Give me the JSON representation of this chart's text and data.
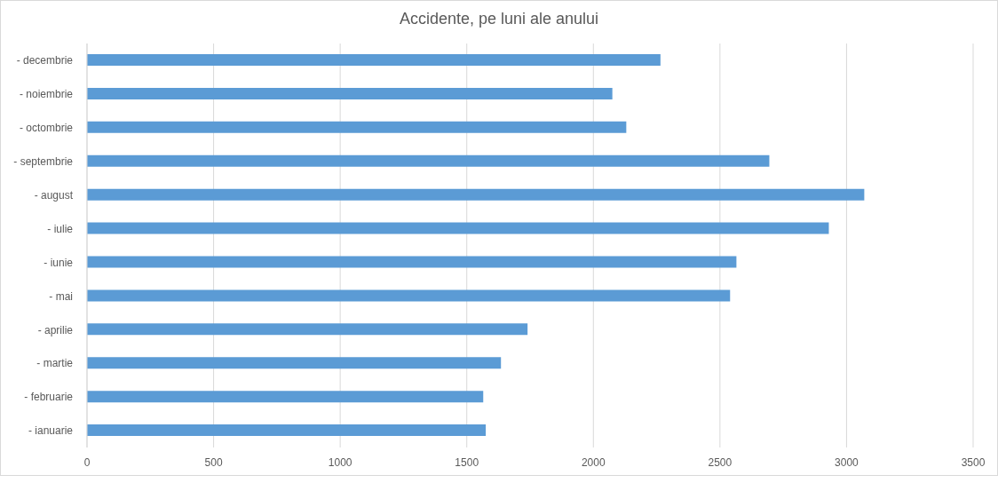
{
  "chart_data": {
    "type": "bar",
    "orientation": "horizontal",
    "title": "Accidente, pe luni ale anului",
    "categories": [
      "- decembrie",
      "- noiembrie",
      "- octombrie",
      "- septembrie",
      "- august",
      "- iulie",
      "- iunie",
      "- mai",
      "- aprilie",
      "- martie",
      "- februarie",
      "- ianuarie"
    ],
    "values": [
      2265,
      2075,
      2130,
      2695,
      3070,
      2930,
      2565,
      2540,
      1740,
      1635,
      1565,
      1575
    ],
    "color": "#5b9bd5",
    "xlim": [
      0,
      3500
    ],
    "xticks": [
      0,
      500,
      1000,
      1500,
      2000,
      2500,
      3000,
      3500
    ],
    "grid": "x"
  }
}
